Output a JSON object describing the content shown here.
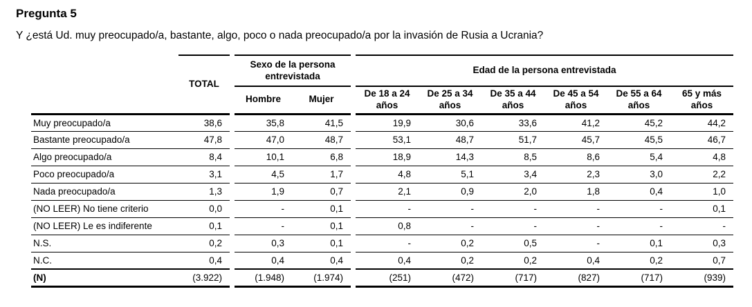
{
  "page": {
    "title": "Pregunta 5",
    "question": "Y ¿está Ud. muy preocupado/a, bastante, algo, poco o nada preocupado/a por la invasión de Rusia a Ucrania?"
  },
  "table": {
    "total_label": "TOTAL",
    "groups": [
      {
        "label": "Sexo de la persona entrevistada",
        "columns": [
          "Hombre",
          "Mujer"
        ]
      },
      {
        "label": "Edad de la persona entrevistada",
        "columns": [
          "De 18 a 24 años",
          "De 25 a 34 años",
          "De 35 a 44 años",
          "De 45 a 54 años",
          "De 55 a 64 años",
          "65 y más años"
        ]
      }
    ],
    "rows": [
      {
        "label": "Muy preocupado/a",
        "bold": false,
        "values": [
          "38,6",
          "35,8",
          "41,5",
          "19,9",
          "30,6",
          "33,6",
          "41,2",
          "45,2",
          "44,2"
        ]
      },
      {
        "label": "Bastante preocupado/a",
        "bold": false,
        "values": [
          "47,8",
          "47,0",
          "48,7",
          "53,1",
          "48,7",
          "51,7",
          "45,7",
          "45,5",
          "46,7"
        ]
      },
      {
        "label": "Algo preocupado/a",
        "bold": false,
        "values": [
          "8,4",
          "10,1",
          "6,8",
          "18,9",
          "14,3",
          "8,5",
          "8,6",
          "5,4",
          "4,8"
        ]
      },
      {
        "label": "Poco preocupado/a",
        "bold": false,
        "values": [
          "3,1",
          "4,5",
          "1,7",
          "4,8",
          "5,1",
          "3,4",
          "2,3",
          "3,0",
          "2,2"
        ]
      },
      {
        "label": "Nada preocupado/a",
        "bold": false,
        "values": [
          "1,3",
          "1,9",
          "0,7",
          "2,1",
          "0,9",
          "2,0",
          "1,8",
          "0,4",
          "1,0"
        ]
      },
      {
        "label": "(NO LEER) No tiene criterio",
        "bold": false,
        "values": [
          "0,0",
          "-",
          "0,1",
          "-",
          "-",
          "-",
          "-",
          "-",
          "0,1"
        ]
      },
      {
        "label": "(NO LEER) Le es indiferente",
        "bold": false,
        "values": [
          "0,1",
          "-",
          "0,1",
          "0,8",
          "-",
          "-",
          "-",
          "-",
          "-"
        ]
      },
      {
        "label": "N.S.",
        "bold": false,
        "values": [
          "0,2",
          "0,3",
          "0,1",
          "-",
          "0,2",
          "0,5",
          "-",
          "0,1",
          "0,3"
        ]
      },
      {
        "label": "N.C.",
        "bold": false,
        "values": [
          "0,4",
          "0,4",
          "0,4",
          "0,4",
          "0,2",
          "0,2",
          "0,4",
          "0,2",
          "0,7"
        ]
      },
      {
        "label": "(N)",
        "bold": true,
        "values": [
          "(3.922)",
          "(1.948)",
          "(1.974)",
          "(251)",
          "(472)",
          "(717)",
          "(827)",
          "(717)",
          "(939)"
        ]
      }
    ]
  }
}
